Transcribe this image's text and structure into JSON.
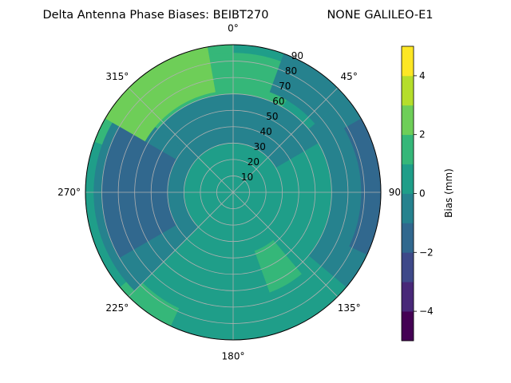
{
  "chart_data": {
    "type": "heatmap",
    "projection": "polar",
    "title": "Delta Antenna Phase Biases: BEIBT270",
    "subtitle": "NONE GALILEO-E1",
    "theta_direction": "clockwise",
    "theta_zero": "top",
    "theta_ticks": [
      "0°",
      "45°",
      "90°",
      "135°",
      "180°",
      "225°",
      "270°",
      "315°"
    ],
    "r_ticks": [
      "10",
      "20",
      "30",
      "40",
      "50",
      "60",
      "70",
      "80",
      "90"
    ],
    "r_range": [
      0,
      90
    ],
    "grid": true,
    "colorbar": {
      "label": "Bias (mm)",
      "range": [
        -5,
        5
      ],
      "levels": [
        -5,
        -4,
        -3,
        -2,
        -1,
        0,
        1,
        2,
        3,
        4,
        5
      ],
      "tick_labels": [
        "−4",
        "−2",
        "0",
        "2",
        "4"
      ],
      "tick_values": [
        -4,
        -2,
        0,
        2,
        4
      ],
      "colors": [
        "#440154",
        "#482878",
        "#3e4989",
        "#31688e",
        "#26828e",
        "#1f9e89",
        "#35b779",
        "#6ece58",
        "#b5de2b",
        "#fde725"
      ]
    },
    "base_level_bias": 0.5,
    "regions": [
      {
        "name": "north-west high",
        "az_range": [
          300,
          350
        ],
        "el_range": [
          62,
          90
        ],
        "bias": 2.5
      },
      {
        "name": "north-west rim",
        "az_range": [
          290,
          360
        ],
        "el_range": [
          55,
          90
        ],
        "bias": 1.5
      },
      {
        "name": "north ridge",
        "az_range": [
          340,
          30
        ],
        "el_range": [
          40,
          85
        ],
        "bias": 1.5
      },
      {
        "name": "north-east low",
        "az_range": [
          20,
          50
        ],
        "el_range": [
          65,
          90
        ],
        "bias": -0.5
      },
      {
        "name": "north-east ring",
        "az_range": [
          300,
          60
        ],
        "el_range": [
          30,
          60
        ],
        "bias": -0.5
      },
      {
        "name": "east low",
        "az_range": [
          60,
          115
        ],
        "el_range": [
          78,
          90
        ],
        "bias": -1.5
      },
      {
        "name": "east band",
        "az_range": [
          50,
          130
        ],
        "el_range": [
          60,
          90
        ],
        "bias": -0.5
      },
      {
        "name": "south-east high",
        "az_range": [
          140,
          160
        ],
        "el_range": [
          38,
          65
        ],
        "bias": 1.5
      },
      {
        "name": "south high",
        "az_range": [
          205,
          230
        ],
        "el_range": [
          78,
          90
        ],
        "bias": 1.5
      },
      {
        "name": "west low",
        "az_range": [
          240,
          300
        ],
        "el_range": [
          40,
          80
        ],
        "bias": -1.5
      },
      {
        "name": "west band",
        "az_range": [
          225,
          310
        ],
        "el_range": [
          30,
          85
        ],
        "bias": -0.5
      },
      {
        "name": "centre",
        "az_range": [
          0,
          360
        ],
        "el_range": [
          0,
          20
        ],
        "bias": 0.5
      }
    ]
  }
}
